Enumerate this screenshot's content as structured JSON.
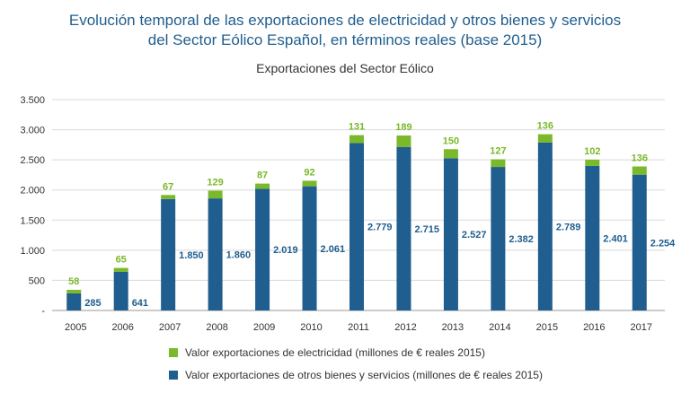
{
  "header": {
    "title_line1": "Evolución temporal de las exportaciones de electricidad y otros bienes y servicios",
    "title_line2": "del Sector Eólico Español, en términos reales (base 2015)"
  },
  "chart_data": {
    "type": "bar",
    "stacked": true,
    "title": "Exportaciones del Sector Eólico",
    "categories": [
      "2005",
      "2006",
      "2007",
      "2008",
      "2009",
      "2010",
      "2011",
      "2012",
      "2013",
      "2014",
      "2015",
      "2016",
      "2017"
    ],
    "series": [
      {
        "name": "Valor exportaciones de otros bienes y servicios (millones de € reales 2015)",
        "values": [
          285,
          641,
          1850,
          1860,
          2019,
          2061,
          2779,
          2715,
          2527,
          2382,
          2789,
          2401,
          2254
        ],
        "labels": [
          "285",
          "641",
          "1.850",
          "1.860",
          "2.019",
          "2.061",
          "2.779",
          "2.715",
          "2.527",
          "2.382",
          "2.789",
          "2.401",
          "2.254"
        ],
        "color": "#1f5e8f"
      },
      {
        "name": "Valor exportaciones de electricidad (millones de € reales 2015)",
        "values": [
          58,
          65,
          67,
          129,
          87,
          92,
          131,
          189,
          150,
          127,
          136,
          102,
          136
        ],
        "labels": [
          "58",
          "65",
          "67",
          "129",
          "87",
          "92",
          "131",
          "189",
          "150",
          "127",
          "136",
          "102",
          "136"
        ],
        "color": "#7ab929"
      }
    ],
    "ylim": [
      0,
      3500
    ],
    "yticks": [
      0,
      500,
      1000,
      1500,
      2000,
      2500,
      3000,
      3500
    ],
    "ytick_labels": [
      "-",
      "500",
      "1.000",
      "1.500",
      "2.000",
      "2.500",
      "3.000",
      "3.500"
    ],
    "grid": true,
    "legend_position": "bottom"
  }
}
